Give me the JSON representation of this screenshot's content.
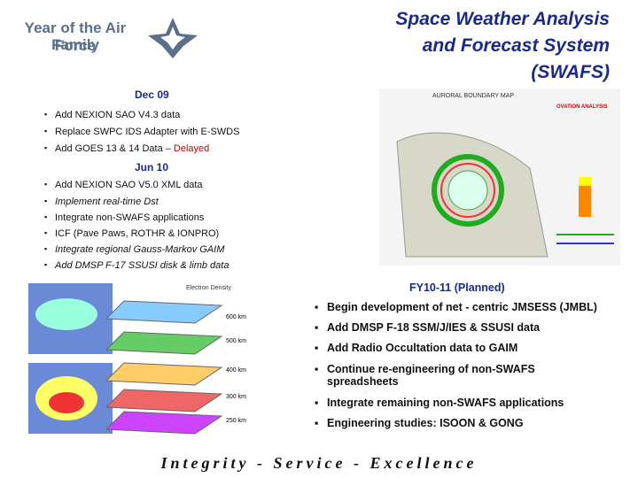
{
  "header": {
    "logo_lines": [
      "Year of the Air Force",
      "Family"
    ],
    "title_lines": [
      "Space Weather Analysis",
      "and Forecast System",
      "(SWAFS)"
    ]
  },
  "sections": [
    {
      "heading": "Dec 09",
      "items": [
        {
          "text": "Add NEXION SAO V4.3 data"
        },
        {
          "text": "Replace SWPC IDS Adapter with E-SWDS"
        },
        {
          "text": "Add GOES 13 & 14 Data –",
          "status": "Delayed"
        }
      ]
    },
    {
      "heading": "Jun 10",
      "items": [
        {
          "text": "Add NEXION SAO V5.0 XML data"
        },
        {
          "text": "Implement real-time Dst"
        },
        {
          "text": "Integrate non-SWAFS applications"
        },
        {
          "text": "ICF (Pave Paws, ROTHR & IONPRO)"
        },
        {
          "text": "Integrate regional Gauss-Markov GAIM"
        },
        {
          "text": "Add DMSP F-17 SSUSI disk & limb data"
        }
      ]
    },
    {
      "heading": "FY10-11 (Planned)",
      "items": [
        {
          "text": "Begin development of net - centric JMSESS (JMBL)"
        },
        {
          "text": "Add DMSP F-18 SSM/J/IES & SSUSI data"
        },
        {
          "text": "Add Radio Occultation data to GAIM"
        },
        {
          "text": "Continue re-engineering of  non-SWAFS spreadsheets"
        },
        {
          "text": "Integrate remaining non-SWAFS applications"
        },
        {
          "text": "Engineering studies: ISOON & GONG"
        }
      ]
    }
  ],
  "auroral_map": {
    "title": "AURORAL BOUNDARY MAP",
    "label": "OVATION ANALYSIS"
  },
  "density_plot": {
    "title": "Electron Density",
    "altitudes": [
      "600 km",
      "500 km",
      "400 km",
      "300 km",
      "250 km"
    ]
  },
  "footer": "Integrity - Service - Excellence"
}
